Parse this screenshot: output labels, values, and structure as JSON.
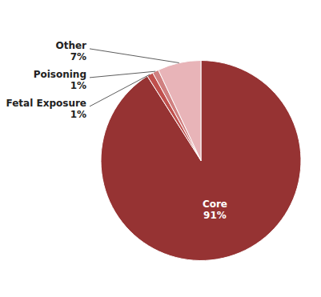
{
  "chart_data": {
    "type": "pie",
    "categories": [
      "Core",
      "Fetal Exposure",
      "Poisoning",
      "Other"
    ],
    "values": [
      91,
      1,
      1,
      7
    ],
    "value_labels": [
      "91%",
      "1%",
      "1%",
      "7%"
    ],
    "colors": [
      "#963333",
      "#c0504d",
      "#d08080",
      "#e8b4b8"
    ],
    "data_labels": true
  }
}
